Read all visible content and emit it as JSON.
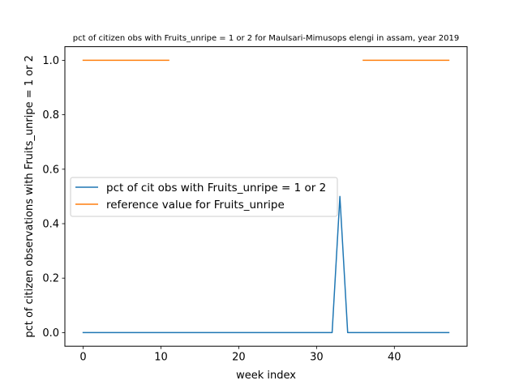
{
  "chart_data": {
    "type": "line",
    "title": "pct of citizen obs with Fruits_unripe = 1 or 2 for Maulsari-Mimusops elengi in assam, year 2019",
    "xlabel": "week index",
    "ylabel": "pct of citizen observations with Fruits_unripe = 1 or 2",
    "xlim": [
      -2.35,
      49.35
    ],
    "ylim": [
      -0.05,
      1.05
    ],
    "xticks": [
      0,
      10,
      20,
      30,
      40
    ],
    "xtick_labels": [
      "0",
      "10",
      "20",
      "30",
      "40"
    ],
    "yticks": [
      0.0,
      0.2,
      0.4,
      0.6,
      0.8,
      1.0
    ],
    "ytick_labels": [
      "0.0",
      "0.2",
      "0.4",
      "0.6",
      "0.8",
      "1.0"
    ],
    "grid": false,
    "legend_position": "center-left",
    "series": [
      {
        "name": "pct of cit obs with Fruits_unripe = 1 or 2",
        "color": "#1f77b4",
        "x": [
          0,
          1,
          2,
          3,
          4,
          5,
          6,
          7,
          8,
          9,
          10,
          11,
          12,
          13,
          14,
          15,
          16,
          17,
          18,
          19,
          20,
          21,
          22,
          23,
          24,
          25,
          26,
          27,
          28,
          29,
          30,
          31,
          32,
          33,
          34,
          35,
          36,
          37,
          38,
          39,
          40,
          41,
          42,
          43,
          44,
          45,
          46,
          47
        ],
        "y": [
          0,
          0,
          0,
          0,
          0,
          0,
          0,
          0,
          0,
          0,
          0,
          0,
          0,
          0,
          0,
          0,
          0,
          0,
          0,
          0,
          0,
          0,
          0,
          0,
          0,
          0,
          0,
          0,
          0,
          0,
          0,
          0,
          0,
          0.5,
          0,
          0,
          0,
          0,
          0,
          0,
          0,
          0,
          0,
          0,
          0,
          0,
          0,
          0
        ]
      },
      {
        "name": "reference value for Fruits_unripe",
        "color": "#ff7f0e",
        "segments": [
          {
            "x": [
              0,
              1,
              2,
              3,
              4,
              5,
              6,
              7,
              8,
              9,
              10,
              11
            ],
            "y": [
              1,
              1,
              1,
              1,
              1,
              1,
              1,
              1,
              1,
              1,
              1,
              1
            ]
          },
          {
            "x": [
              36,
              37,
              38,
              39,
              40,
              41,
              42,
              43,
              44,
              45,
              46,
              47
            ],
            "y": [
              1,
              1,
              1,
              1,
              1,
              1,
              1,
              1,
              1,
              1,
              1,
              1
            ]
          }
        ]
      }
    ]
  }
}
